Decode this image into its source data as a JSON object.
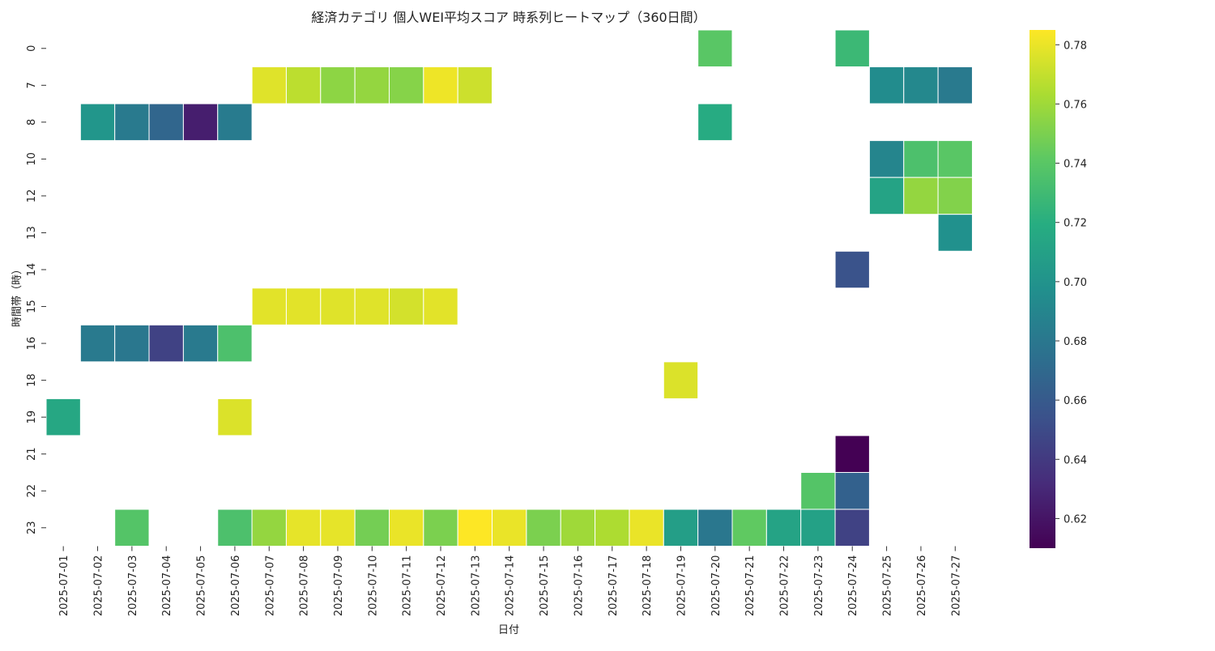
{
  "chart_data": {
    "type": "heatmap",
    "title": "経済カテゴリ 個人WEI平均スコア 時系列ヒートマップ（360日間）",
    "xlabel": "日付",
    "ylabel": "時間帯（時）",
    "x": [
      "2025-07-01",
      "2025-07-02",
      "2025-07-03",
      "2025-07-04",
      "2025-07-05",
      "2025-07-06",
      "2025-07-07",
      "2025-07-08",
      "2025-07-09",
      "2025-07-10",
      "2025-07-11",
      "2025-07-12",
      "2025-07-13",
      "2025-07-14",
      "2025-07-15",
      "2025-07-16",
      "2025-07-17",
      "2025-07-18",
      "2025-07-19",
      "2025-07-20",
      "2025-07-21",
      "2025-07-22",
      "2025-07-23",
      "2025-07-24",
      "2025-07-25",
      "2025-07-26",
      "2025-07-27"
    ],
    "y": [
      "0",
      "7",
      "8",
      "10",
      "12",
      "13",
      "14",
      "15",
      "16",
      "18",
      "19",
      "21",
      "22",
      "23"
    ],
    "colormap": "viridis",
    "color_range": [
      0.61,
      0.785
    ],
    "colorbar_ticks": [
      "0.62",
      "0.64",
      "0.66",
      "0.68",
      "0.70",
      "0.72",
      "0.74",
      "0.76",
      "0.78"
    ],
    "colorbar_values": [
      0.62,
      0.64,
      0.66,
      0.68,
      0.7,
      0.72,
      0.74,
      0.76,
      0.78
    ],
    "values": [
      [
        null,
        null,
        null,
        null,
        null,
        null,
        null,
        null,
        null,
        null,
        null,
        null,
        null,
        null,
        null,
        null,
        null,
        null,
        null,
        0.74,
        null,
        null,
        null,
        0.728,
        null,
        null,
        null
      ],
      [
        null,
        null,
        null,
        null,
        null,
        null,
        0.777,
        0.768,
        0.755,
        0.757,
        0.753,
        0.781,
        0.772,
        null,
        null,
        null,
        null,
        null,
        null,
        null,
        null,
        null,
        null,
        null,
        0.695,
        0.692,
        0.682
      ],
      [
        null,
        0.702,
        0.682,
        0.668,
        0.625,
        0.683,
        null,
        null,
        null,
        null,
        null,
        null,
        null,
        null,
        null,
        null,
        null,
        null,
        null,
        0.718,
        null,
        null,
        null,
        null,
        null,
        null,
        null
      ],
      [
        null,
        null,
        null,
        null,
        null,
        null,
        null,
        null,
        null,
        null,
        null,
        null,
        null,
        null,
        null,
        null,
        null,
        null,
        null,
        null,
        null,
        null,
        null,
        null,
        0.69,
        0.735,
        0.74
      ],
      [
        null,
        null,
        null,
        null,
        null,
        null,
        null,
        null,
        null,
        null,
        null,
        null,
        null,
        null,
        null,
        null,
        null,
        null,
        null,
        null,
        null,
        null,
        null,
        null,
        0.712,
        0.757,
        0.752
      ],
      [
        null,
        null,
        null,
        null,
        null,
        null,
        null,
        null,
        null,
        null,
        null,
        null,
        null,
        null,
        null,
        null,
        null,
        null,
        null,
        null,
        null,
        null,
        null,
        null,
        null,
        null,
        0.698
      ],
      [
        null,
        null,
        null,
        null,
        null,
        null,
        null,
        null,
        null,
        null,
        null,
        null,
        null,
        null,
        null,
        null,
        null,
        null,
        null,
        null,
        null,
        null,
        null,
        0.655,
        null,
        null,
        null
      ],
      [
        null,
        null,
        null,
        null,
        null,
        null,
        0.778,
        0.778,
        0.777,
        0.777,
        0.774,
        0.778,
        null,
        null,
        null,
        null,
        null,
        null,
        null,
        null,
        null,
        null,
        null,
        null,
        null,
        null,
        null
      ],
      [
        null,
        0.682,
        0.68,
        0.645,
        0.682,
        0.735,
        null,
        null,
        null,
        null,
        null,
        null,
        null,
        null,
        null,
        null,
        null,
        null,
        null,
        null,
        null,
        null,
        null,
        null,
        null,
        null,
        null
      ],
      [
        null,
        null,
        null,
        null,
        null,
        null,
        null,
        null,
        null,
        null,
        null,
        null,
        null,
        null,
        null,
        null,
        null,
        null,
        0.776,
        null,
        null,
        null,
        null,
        null,
        null,
        null,
        null
      ],
      [
        0.715,
        null,
        null,
        null,
        null,
        0.776,
        null,
        null,
        null,
        null,
        null,
        null,
        null,
        null,
        null,
        null,
        null,
        null,
        null,
        null,
        null,
        null,
        null,
        null,
        null,
        null,
        null
      ],
      [
        null,
        null,
        null,
        null,
        null,
        null,
        null,
        null,
        null,
        null,
        null,
        null,
        null,
        null,
        null,
        null,
        null,
        null,
        null,
        null,
        null,
        null,
        null,
        0.61,
        null,
        null,
        null
      ],
      [
        null,
        null,
        null,
        null,
        null,
        null,
        null,
        null,
        null,
        null,
        null,
        null,
        null,
        null,
        null,
        null,
        null,
        null,
        null,
        null,
        null,
        null,
        0.738,
        0.665,
        null,
        null,
        null
      ],
      [
        null,
        null,
        0.738,
        null,
        null,
        0.735,
        0.757,
        0.779,
        0.779,
        0.748,
        0.78,
        0.75,
        0.785,
        0.78,
        0.75,
        0.76,
        0.764,
        0.78,
        0.708,
        0.68,
        0.742,
        0.712,
        0.71,
        0.645,
        null,
        null,
        null
      ]
    ]
  }
}
